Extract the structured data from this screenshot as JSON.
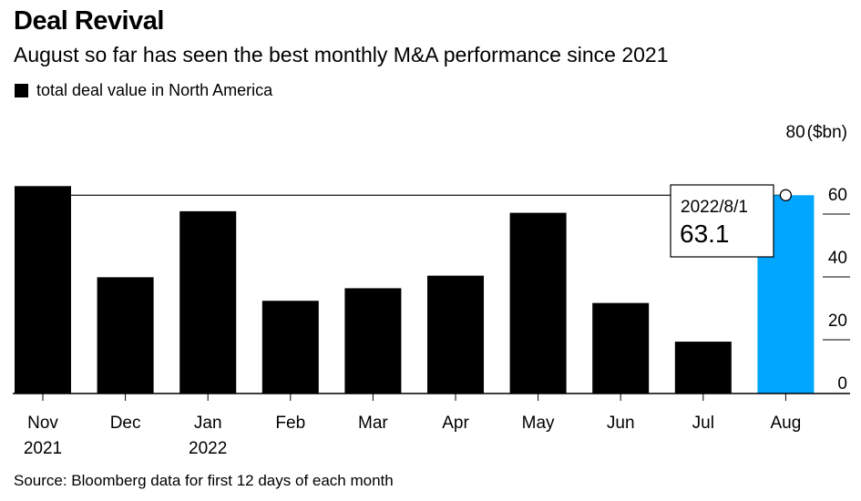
{
  "title": "Deal Revival",
  "subtitle": "August so far has seen the best monthly M&A performance since 2021",
  "legend": {
    "label": "total deal value in North America",
    "color": "#000000"
  },
  "source": "Source: Bloomberg data for first 12 days of each month",
  "colors": {
    "bar": "#000000",
    "highlight": "#00a6ff",
    "axis": "#000000"
  },
  "tooltip": {
    "date": "2022/8/1",
    "value": "63.1"
  },
  "chart_data": {
    "type": "bar",
    "categories": [
      "Nov",
      "Dec",
      "Jan",
      "Feb",
      "Mar",
      "Apr",
      "May",
      "Jun",
      "Jul",
      "Aug"
    ],
    "category_sublabels": [
      "2021",
      "",
      "2022",
      "",
      "",
      "",
      "",
      "",
      "",
      ""
    ],
    "values": [
      66.0,
      37.0,
      58.0,
      29.5,
      33.5,
      37.5,
      57.5,
      28.8,
      16.5,
      63.1
    ],
    "highlight_index": 9,
    "reference_line": 63.1,
    "yticks": [
      0,
      20,
      40,
      60,
      80
    ],
    "ylabel": "($bn)",
    "ylim": [
      0,
      80
    ],
    "y_axis_side": "right",
    "grid": false
  }
}
